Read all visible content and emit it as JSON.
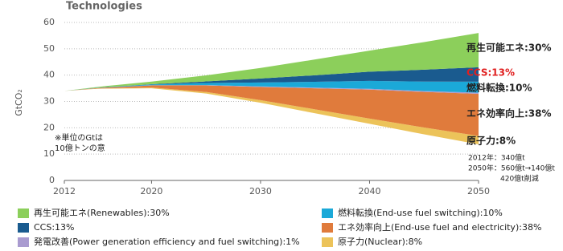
{
  "chart_data": {
    "type": "stacked_area",
    "title": "Technologies",
    "y_label": "GtCO₂",
    "x": [
      2012,
      2015,
      2020,
      2025,
      2030,
      2035,
      2040,
      2045,
      2050
    ],
    "xlim": [
      2012,
      2050
    ],
    "xticks": [
      2012,
      2020,
      2030,
      2040,
      2050
    ],
    "ylim": [
      0,
      60
    ],
    "yticks": [
      0,
      10,
      20,
      30,
      40,
      50,
      60
    ],
    "grid": true,
    "base": [
      34,
      34.8,
      35,
      33,
      29.5,
      25.5,
      21.5,
      17.5,
      13.7
    ],
    "series": [
      {
        "name": "原子力(Nuclear):8%",
        "color": "#ecc35a",
        "values": [
          0,
          0.1,
          0.3,
          0.6,
          1,
          1.5,
          2,
          2.6,
          3.2
        ]
      },
      {
        "name": "エネ効率向上(End-use fuel and electricity):38%",
        "color": "#e07b3c",
        "values": [
          0,
          0.2,
          0.8,
          2.5,
          5,
          8,
          11,
          13.5,
          16
        ]
      },
      {
        "name": "発電改善(Power generation efficiency and fuel switching):1%",
        "color": "#a99bd0",
        "values": [
          0,
          0,
          0.05,
          0.1,
          0.2,
          0.25,
          0.3,
          0.35,
          0.4
        ]
      },
      {
        "name": "燃料転換(End-use fuel switching):10%",
        "color": "#1ba9d8",
        "values": [
          0,
          0.1,
          0.3,
          0.8,
          1.5,
          2.2,
          3,
          3.6,
          4.2
        ]
      },
      {
        "name": "CCS:13%",
        "color": "#1a5b8f",
        "values": [
          0,
          0,
          0.1,
          0.6,
          1.5,
          2.5,
          3.5,
          4.5,
          5.5
        ]
      },
      {
        "name": "再生可能エネ(Renewables):30%",
        "color": "#8ccf5b",
        "values": [
          0,
          0.3,
          1,
          2.3,
          4,
          6,
          8,
          10.5,
          13
        ]
      }
    ],
    "end_labels": [
      {
        "text": "再生可能エネ:30%",
        "color": "#222"
      },
      {
        "text": "CCS:13%",
        "color": "#e02020"
      },
      {
        "text": "燃料転換:10%",
        "color": "#222"
      },
      {
        "text": "エネ効率向上:38%",
        "color": "#222"
      },
      {
        "text": "原子力:8%",
        "color": "#222"
      }
    ],
    "annotations": [
      "※単位のGtは",
      "10億トンの意",
      "2012年：340億t",
      "2050年：560億t→140億t",
      "420億t削減"
    ]
  }
}
